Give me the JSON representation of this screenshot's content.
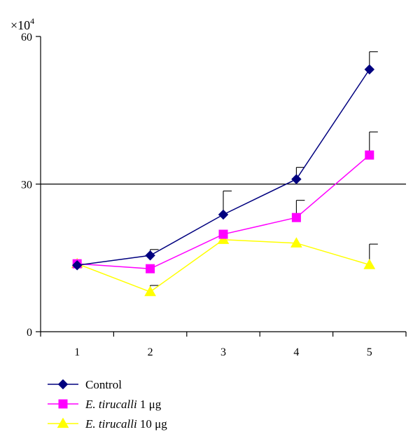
{
  "chart_data": {
    "type": "line",
    "title": "",
    "xlabel": "",
    "ylabel": "",
    "y_multiplier_label": "×10",
    "y_multiplier_exponent": "4",
    "x": [
      1,
      2,
      3,
      4,
      5
    ],
    "xlim": [
      0.5,
      5.5
    ],
    "ylim": [
      0,
      60
    ],
    "yticks": [
      0,
      30,
      60
    ],
    "grid": "horizontal line at 30",
    "legend_position": "bottom-left",
    "series": [
      {
        "name": "Control",
        "name_italic": "",
        "name_rest": "Control",
        "color": "#00007f",
        "marker": "diamond",
        "values": [
          13.5,
          15.5,
          23.8,
          31,
          53.3
        ],
        "error": [
          0,
          1.2,
          4.8,
          2.4,
          3.6
        ]
      },
      {
        "name": "E. tirucalli 1 μg",
        "name_italic": "E. tirucalli",
        "name_rest": " 1 μg",
        "color": "#ff00ff",
        "marker": "square",
        "values": [
          13.8,
          12.8,
          19.8,
          23.2,
          35.9
        ],
        "error": [
          0,
          0,
          0,
          3.5,
          4.7
        ]
      },
      {
        "name": "E. tirucalli 10 μg",
        "name_italic": "E. tirucalli",
        "name_rest": " 10 μg",
        "color": "#ffff00",
        "marker": "triangle",
        "values": [
          13.8,
          8.1,
          18.7,
          18,
          13.6
        ],
        "error": [
          0,
          1.3,
          0,
          0,
          4.2
        ]
      }
    ]
  }
}
